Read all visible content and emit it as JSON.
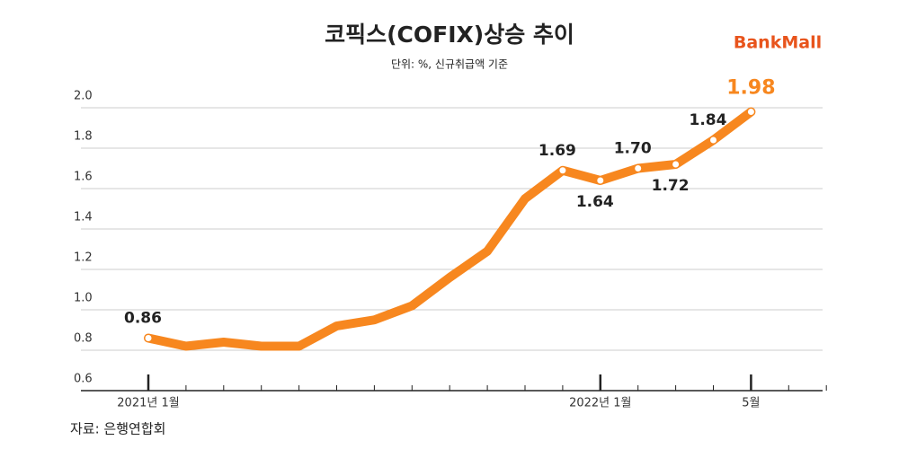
{
  "chart_data": {
    "type": "line",
    "title": "코픽스(COFIX)상승 추이",
    "subtitle": "단위: %, 신규취급액 기준",
    "source": "자료: 은행연합회",
    "logo": "BankMall",
    "categories": [
      "2021년 1월",
      null,
      null,
      null,
      null,
      null,
      null,
      null,
      null,
      null,
      null,
      null,
      "2022년 1월",
      null,
      null,
      null,
      "5월"
    ],
    "series": [
      {
        "name": "COFIX",
        "color": "#f7871f",
        "values": [
          0.86,
          0.82,
          0.84,
          0.82,
          0.82,
          0.92,
          0.95,
          1.02,
          1.16,
          1.29,
          1.55,
          1.69,
          1.64,
          1.7,
          1.72,
          1.84,
          1.98
        ],
        "value_labels": [
          "0.86",
          null,
          null,
          null,
          null,
          null,
          null,
          null,
          null,
          null,
          null,
          "1.69",
          "1.64",
          "1.70",
          "1.72",
          "1.84",
          "1.98"
        ]
      }
    ],
    "ylim": [
      0.6,
      2.0
    ],
    "yticks": [
      0.6,
      0.8,
      {
        "value": 1.0,
        "label": "1.0"
      },
      1.2,
      1.4,
      1.6,
      1.8,
      {
        "value": 2.0,
        "label": "2.0"
      }
    ],
    "grid": true
  }
}
